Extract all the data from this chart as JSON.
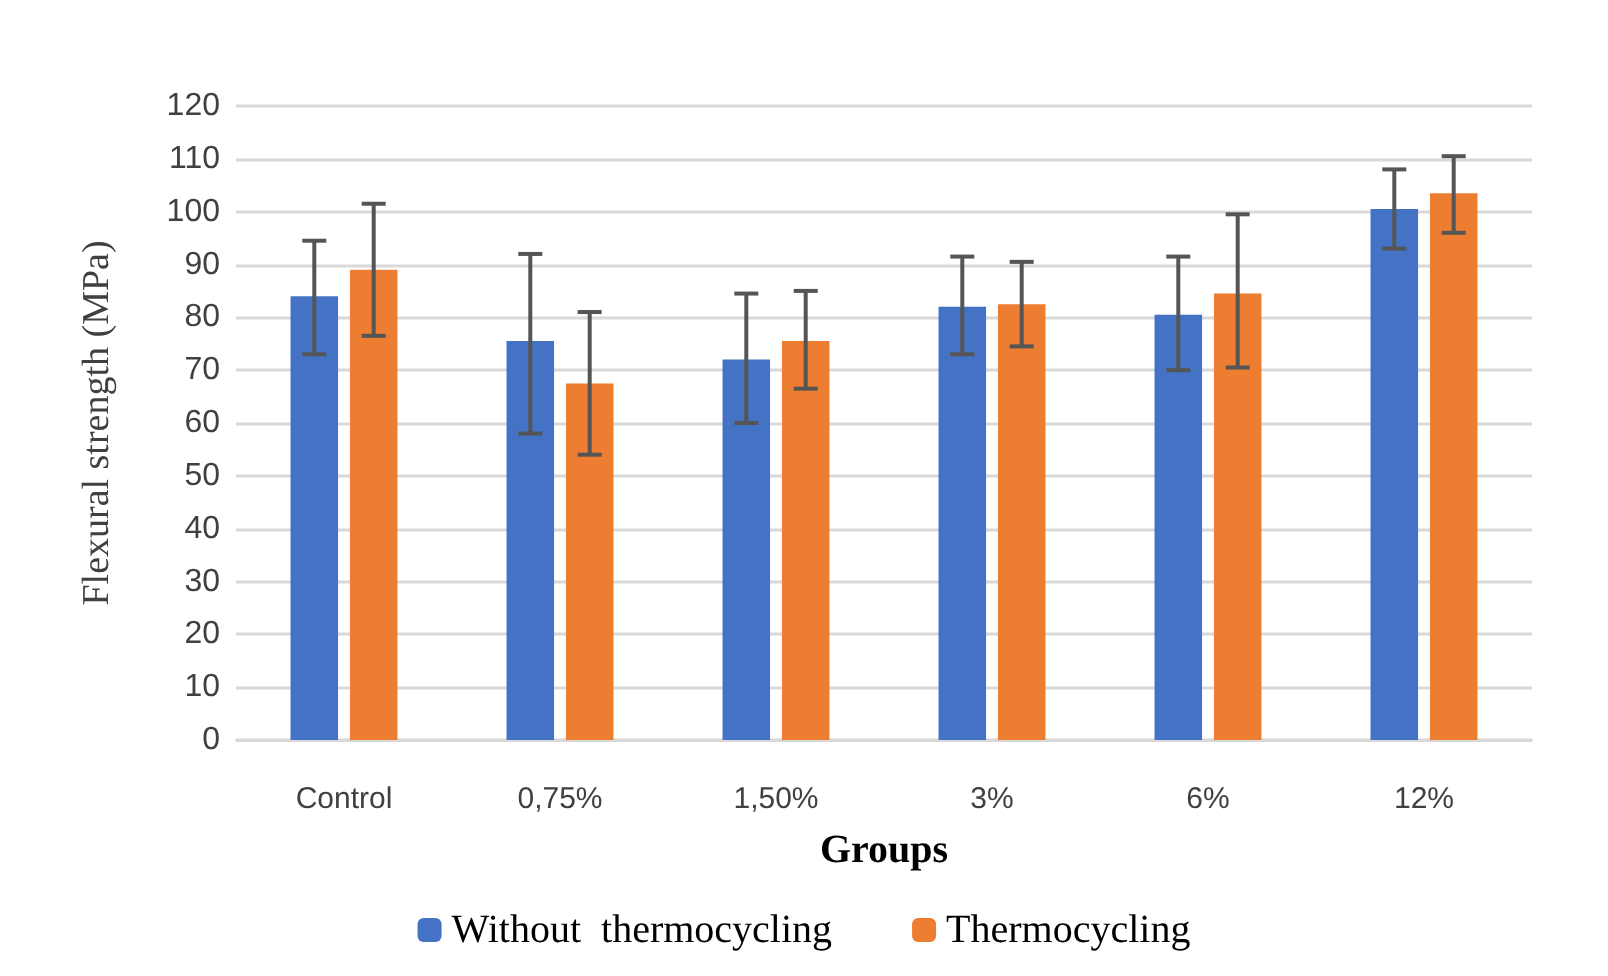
{
  "chart_data": {
    "type": "bar",
    "xlabel": "Groups",
    "ylabel": "Flexural strength (MPa)",
    "categories": [
      "Control",
      "0,75%",
      "1,50%",
      "3%",
      "6%",
      "12%"
    ],
    "series": [
      {
        "name": "Without  thermocycling",
        "color": "#4472c4",
        "values": [
          84,
          75.5,
          72,
          82,
          80.5,
          100.5
        ],
        "errors": [
          [
            73,
            94.5
          ],
          [
            58,
            92
          ],
          [
            60,
            84.5
          ],
          [
            73,
            91.5
          ],
          [
            70,
            91.5
          ],
          [
            93,
            108
          ]
        ]
      },
      {
        "name": "Thermocycling",
        "color": "#ed7d31",
        "values": [
          89,
          67.5,
          75.5,
          82.5,
          84.5,
          103.5
        ],
        "errors": [
          [
            76.5,
            101.5
          ],
          [
            54,
            81
          ],
          [
            66.5,
            85
          ],
          [
            74.5,
            90.5
          ],
          [
            70.5,
            99.5
          ],
          [
            96,
            110.5
          ]
        ]
      }
    ],
    "ylim": [
      0,
      120
    ],
    "yticks": [
      0,
      10,
      20,
      30,
      40,
      50,
      60,
      70,
      80,
      90,
      100,
      110,
      120
    ],
    "grid": "y",
    "legend": "bottom"
  }
}
